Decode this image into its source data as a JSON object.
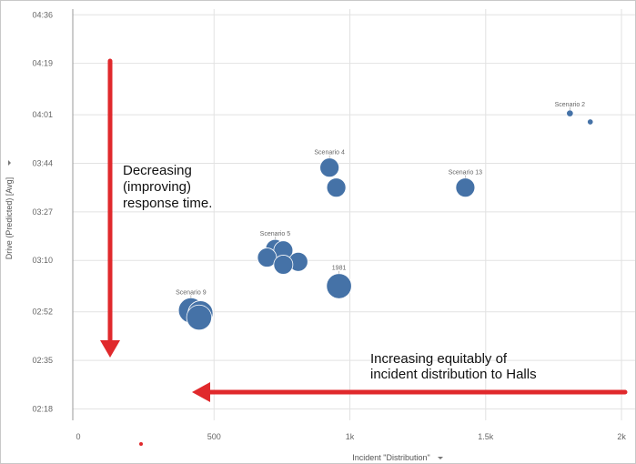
{
  "chart_data": {
    "type": "scatter",
    "xlabel": "Incident \"Distribution\"",
    "ylabel": "Drive (Predicted) [Avg]",
    "x_ticks": [
      {
        "value": 0,
        "label": "0"
      },
      {
        "value": 500,
        "label": "500"
      },
      {
        "value": 1000,
        "label": "1k"
      },
      {
        "value": 1500,
        "label": "1.5k"
      },
      {
        "value": 2000,
        "label": "2k"
      }
    ],
    "y_ticks": [
      {
        "value": 138,
        "label": "02:18"
      },
      {
        "value": 155,
        "label": "02:35"
      },
      {
        "value": 172,
        "label": "02:52"
      },
      {
        "value": 190,
        "label": "03:10"
      },
      {
        "value": 207,
        "label": "03:27"
      },
      {
        "value": 224,
        "label": "03:44"
      },
      {
        "value": 241,
        "label": "04:01"
      },
      {
        "value": 259,
        "label": "04:19"
      },
      {
        "value": 276,
        "label": "04:36"
      }
    ],
    "xlim": [
      -20,
      2050
    ],
    "ylim": [
      134,
      278
    ],
    "grid": true,
    "point_color": "#4572a7",
    "points": [
      {
        "x": 1810,
        "y": 241.5,
        "size": 1.5,
        "label": "Scenario 2"
      },
      {
        "x": 1885,
        "y": 238.5,
        "size": 1.3,
        "label": ""
      },
      {
        "x": 925,
        "y": 222.5,
        "size": 4.2,
        "label": "Scenario 4"
      },
      {
        "x": 950,
        "y": 215.5,
        "size": 4.2,
        "label": ""
      },
      {
        "x": 1425,
        "y": 215.5,
        "size": 4.2,
        "label": "Scenario 13"
      },
      {
        "x": 725,
        "y": 194,
        "size": 4.2,
        "label": "Scenario 5"
      },
      {
        "x": 755,
        "y": 193.5,
        "size": 4.2,
        "label": ""
      },
      {
        "x": 695,
        "y": 191,
        "size": 4.2,
        "label": ""
      },
      {
        "x": 810,
        "y": 189.5,
        "size": 4.2,
        "label": ""
      },
      {
        "x": 755,
        "y": 188.5,
        "size": 4.2,
        "label": ""
      },
      {
        "x": 960,
        "y": 181,
        "size": 5.5,
        "label": "1981"
      },
      {
        "x": 415,
        "y": 172.5,
        "size": 5.5,
        "label": "Scenario 9"
      },
      {
        "x": 450,
        "y": 171.5,
        "size": 5.5,
        "label": ""
      },
      {
        "x": 445,
        "y": 170,
        "size": 5.5,
        "label": ""
      }
    ],
    "annotations": {
      "vertical_text": [
        "Decreasing",
        "(improving)",
        "response time."
      ],
      "horizontal_text": [
        "Increasing equitably of",
        "incident distribution to Halls"
      ],
      "arrow_color": "#e0292c"
    }
  },
  "axes": {
    "x_dropdown_icon": "caret-down-icon",
    "y_dropdown_icon": "caret-down-icon"
  }
}
